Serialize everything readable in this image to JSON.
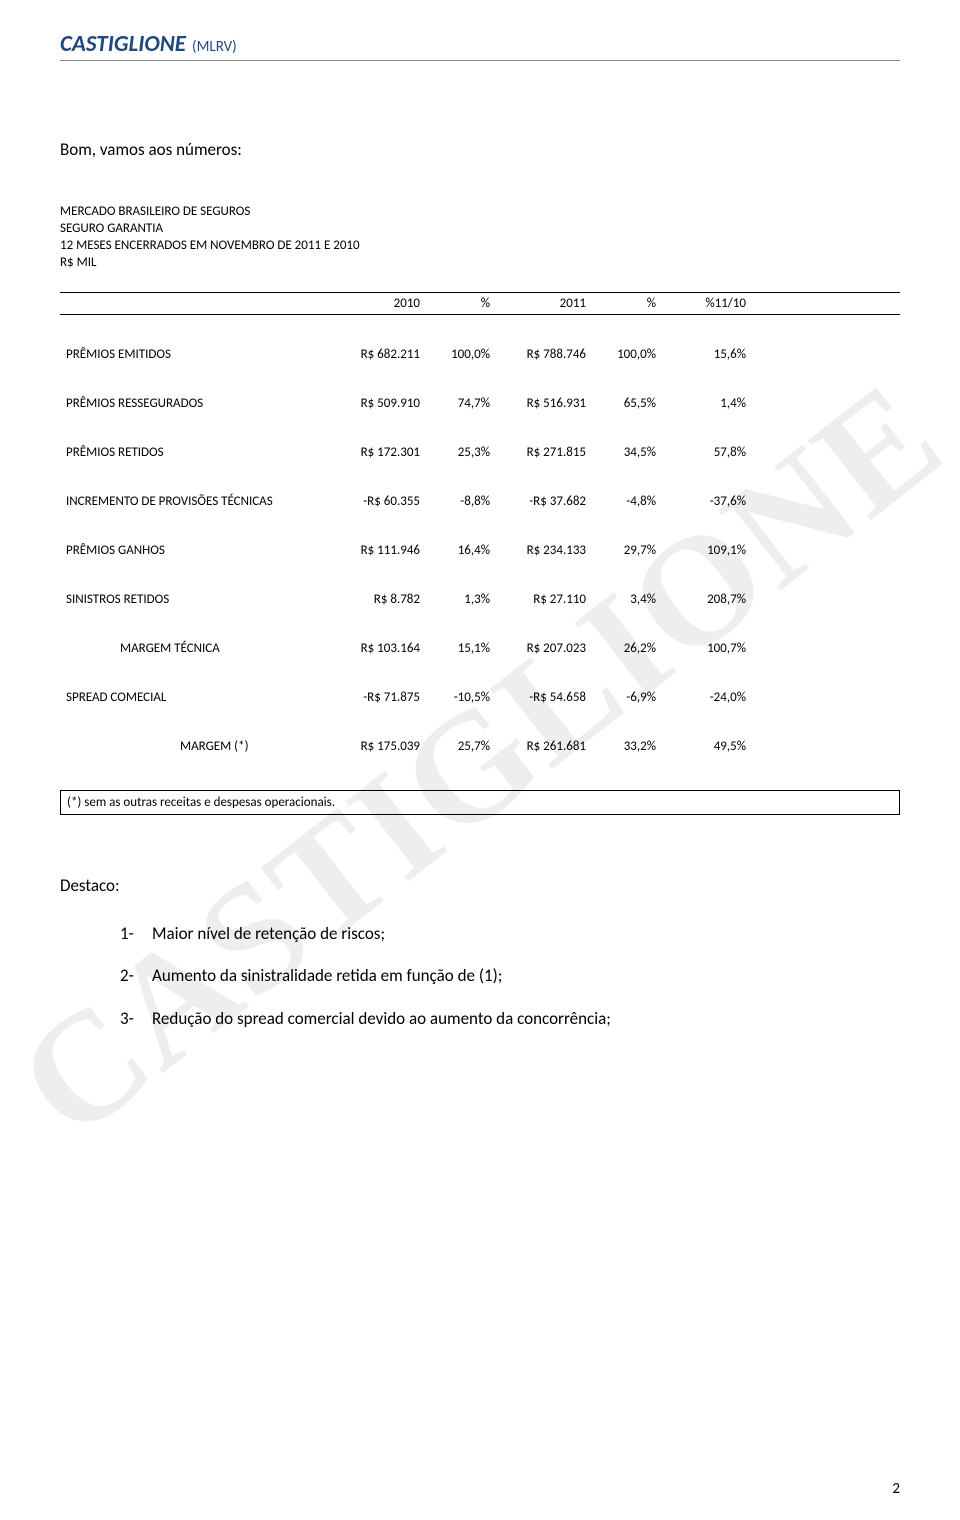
{
  "watermark": "CASTIGLIONE",
  "header": {
    "main": "CASTIGLIONE",
    "sub": "(MLRV)"
  },
  "intro": "Bom, vamos aos números:",
  "table": {
    "title": "MERCADO BRASILEIRO DE SEGUROS",
    "sub1": "SEGURO GARANTIA",
    "sub2": "12 MESES ENCERRADOS EM NOVEMBRO DE 2011 E 2010",
    "mil": "R$ MIL",
    "columns": [
      "2010",
      "%",
      "2011",
      "%",
      "%11/10"
    ],
    "rows": [
      {
        "label": "PRÊMIOS EMITIDOS",
        "indent": 0,
        "v2010": "R$ 682.211",
        "p2010": "100,0%",
        "v2011": "R$ 788.746",
        "p2011": "100,0%",
        "delta": "15,6%"
      },
      {
        "label": "PRÊMIOS RESSEGURADOS",
        "indent": 0,
        "v2010": "R$ 509.910",
        "p2010": "74,7%",
        "v2011": "R$ 516.931",
        "p2011": "65,5%",
        "delta": "1,4%"
      },
      {
        "label": "PRÊMIOS RETIDOS",
        "indent": 0,
        "v2010": "R$ 172.301",
        "p2010": "25,3%",
        "v2011": "R$ 271.815",
        "p2011": "34,5%",
        "delta": "57,8%"
      },
      {
        "label": "INCREMENTO DE PROVISÕES TÉCNICAS",
        "indent": 0,
        "v2010": "-R$ 60.355",
        "p2010": "-8,8%",
        "v2011": "-R$ 37.682",
        "p2011": "-4,8%",
        "delta": "-37,6%"
      },
      {
        "label": "PRÊMIOS GANHOS",
        "indent": 0,
        "v2010": "R$ 111.946",
        "p2010": "16,4%",
        "v2011": "R$ 234.133",
        "p2011": "29,7%",
        "delta": "109,1%"
      },
      {
        "label": "SINISTROS RETIDOS",
        "indent": 0,
        "v2010": "R$ 8.782",
        "p2010": "1,3%",
        "v2011": "R$ 27.110",
        "p2011": "3,4%",
        "delta": "208,7%"
      },
      {
        "label": "MARGEM TÉCNICA",
        "indent": 1,
        "v2010": "R$ 103.164",
        "p2010": "15,1%",
        "v2011": "R$ 207.023",
        "p2011": "26,2%",
        "delta": "100,7%"
      },
      {
        "label": "SPREAD COMECIAL",
        "indent": 0,
        "v2010": "-R$ 71.875",
        "p2010": "-10,5%",
        "v2011": "-R$ 54.658",
        "p2011": "-6,9%",
        "delta": "-24,0%"
      },
      {
        "label": "MARGEM (*)",
        "indent": 2,
        "v2010": "R$ 175.039",
        "p2010": "25,7%",
        "v2011": "R$ 261.681",
        "p2011": "33,2%",
        "delta": "49,5%"
      }
    ],
    "footnote": "(*) sem as outras receitas e despesas operacionais."
  },
  "destaco": "Destaco:",
  "list": [
    {
      "num": "1-",
      "text": "Maior nível de retenção de riscos;"
    },
    {
      "num": "2-",
      "text": "Aumento da sinistralidade retida em função de (1);"
    },
    {
      "num": "3-",
      "text": "Redução do spread comercial devido ao aumento da concorrência;"
    }
  ],
  "page_number": "2"
}
